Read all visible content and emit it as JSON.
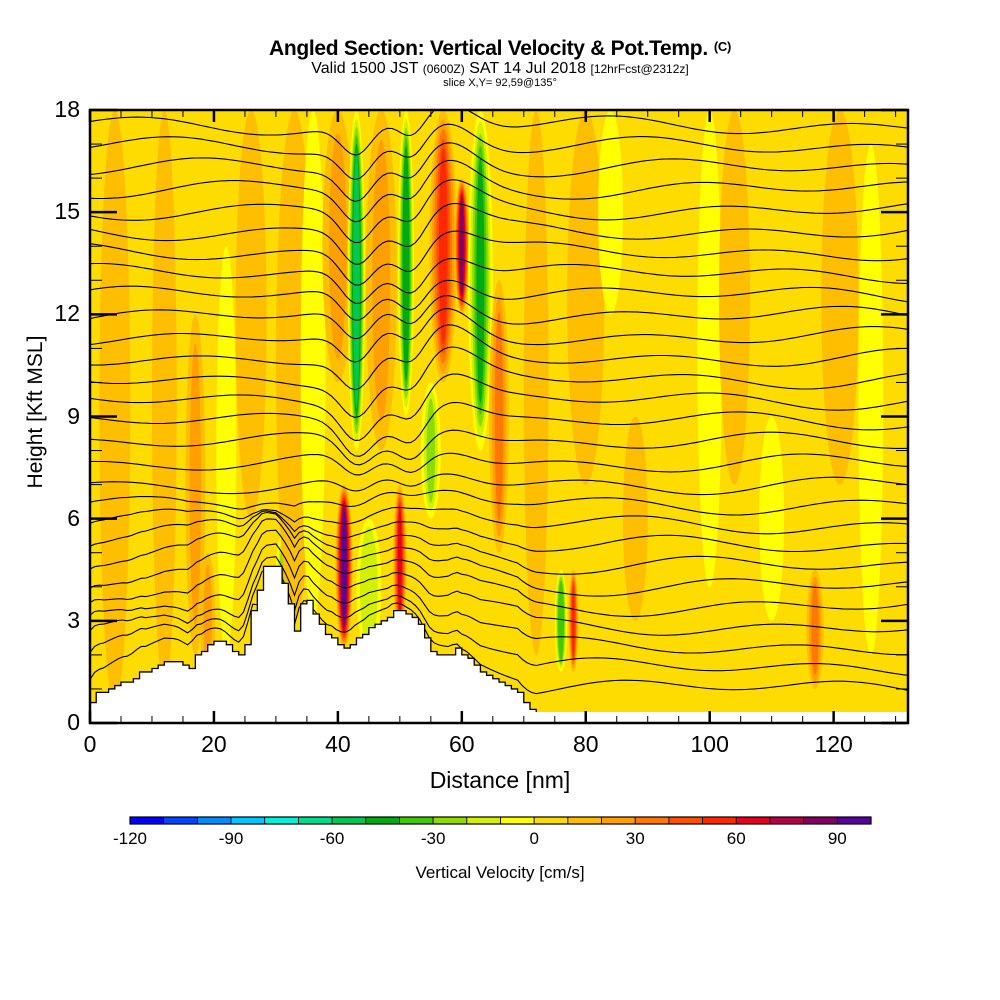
{
  "header": {
    "title": "Angled Section: Vertical Velocity & Pot.Temp.",
    "title_suffix": "(C)",
    "valid_prefix": "Valid 1500 JST",
    "valid_utc": "(0600Z)",
    "valid_date": "SAT 14 Jul 2018",
    "forecast": "[12hrFcst@2312z]",
    "slice": "slice X,Y= 92,59@135°"
  },
  "chart_data": {
    "type": "heatmap",
    "title": "Angled Section: Vertical Velocity & Pot.Temp. (C)",
    "xlabel": "Distance [nm]",
    "ylabel": "Height [Kft MSL]",
    "xlim": [
      0,
      132
    ],
    "ylim": [
      0,
      18
    ],
    "x_ticks": [
      "0",
      "20",
      "40",
      "60",
      "80",
      "100",
      "120"
    ],
    "x_tick_values": [
      0,
      20,
      40,
      60,
      80,
      100,
      120
    ],
    "y_ticks": [
      "0",
      "3",
      "6",
      "9",
      "12",
      "15",
      "18"
    ],
    "y_tick_values": [
      0,
      3,
      6,
      9,
      12,
      15,
      18
    ],
    "colorbar": {
      "label": "Vertical Velocity [cm/s]",
      "min": -120,
      "max": 100,
      "step": 10,
      "tick_labels": [
        "-120",
        "-90",
        "-60",
        "-30",
        "0",
        "30",
        "60",
        "90"
      ],
      "tick_values": [
        -120,
        -90,
        -60,
        -30,
        0,
        30,
        60,
        90
      ],
      "colors": [
        "#0000ff",
        "#0046ff",
        "#008cff",
        "#00c8ff",
        "#00f0dc",
        "#00dc8c",
        "#00c850",
        "#00aa14",
        "#46c800",
        "#8cdc00",
        "#d2f000",
        "#ffff00",
        "#ffdc00",
        "#ffbe00",
        "#ffa000",
        "#ff7800",
        "#ff5000",
        "#ff2800",
        "#e6001e",
        "#b40046",
        "#820064",
        "#5a0096"
      ]
    },
    "background_value": 5,
    "velocity_features": [
      {
        "x": 4,
        "z0": 0.5,
        "z1": 18,
        "w": 2.5,
        "v": 12
      },
      {
        "x": 12,
        "z0": 1,
        "z1": 18,
        "w": 2,
        "v": 14
      },
      {
        "x": 17,
        "z0": 2,
        "z1": 12,
        "w": 1.6,
        "v": 22
      },
      {
        "x": 19,
        "z0": 1,
        "z1": 5,
        "w": 1.2,
        "v": 28
      },
      {
        "x": 22,
        "z0": 2,
        "z1": 14,
        "w": 1.6,
        "v": -10
      },
      {
        "x": 26,
        "z0": 6,
        "z1": 18,
        "w": 2.5,
        "v": 14
      },
      {
        "x": 31,
        "z0": 2,
        "z1": 5.5,
        "w": 1.2,
        "v": -25
      },
      {
        "x": 33,
        "z0": 3,
        "z1": 18,
        "w": 3,
        "v": 12
      },
      {
        "x": 36,
        "z0": 3,
        "z1": 18,
        "w": 2,
        "v": -8
      },
      {
        "x": 40,
        "z0": 10,
        "z1": 18,
        "w": 2.5,
        "v": 22
      },
      {
        "x": 41,
        "z0": 2.2,
        "z1": 7,
        "w": 1.4,
        "v": 92
      },
      {
        "x": 43,
        "z0": 8,
        "z1": 18,
        "w": 1.4,
        "v": -60
      },
      {
        "x": 45,
        "z0": 2,
        "z1": 6,
        "w": 2,
        "v": -20
      },
      {
        "x": 47,
        "z0": 8,
        "z1": 18,
        "w": 2.5,
        "v": 25
      },
      {
        "x": 50,
        "z0": 2.5,
        "z1": 7,
        "w": 1.1,
        "v": 65
      },
      {
        "x": 51,
        "z0": 9,
        "z1": 18,
        "w": 1.3,
        "v": -50
      },
      {
        "x": 55,
        "z0": 6,
        "z1": 10,
        "w": 1.6,
        "v": -25
      },
      {
        "x": 57,
        "z0": 10,
        "z1": 18,
        "w": 2.2,
        "v": 55
      },
      {
        "x": 60,
        "z0": 12,
        "z1": 16,
        "w": 1.2,
        "v": 80
      },
      {
        "x": 63,
        "z0": 8,
        "z1": 18,
        "w": 2,
        "v": -45
      },
      {
        "x": 66,
        "z0": 5,
        "z1": 13,
        "w": 1.6,
        "v": 30
      },
      {
        "x": 72,
        "z0": 2,
        "z1": 18,
        "w": 2,
        "v": 15
      },
      {
        "x": 76,
        "z0": 1.5,
        "z1": 4.5,
        "w": 1,
        "v": -40
      },
      {
        "x": 78,
        "z0": 1.5,
        "z1": 4.5,
        "w": 0.8,
        "v": 50
      },
      {
        "x": 80,
        "z0": 7,
        "z1": 18,
        "w": 3,
        "v": 12
      },
      {
        "x": 84,
        "z0": 12,
        "z1": 18,
        "w": 2,
        "v": -8
      },
      {
        "x": 88,
        "z0": 3,
        "z1": 9,
        "w": 2,
        "v": 18
      },
      {
        "x": 100,
        "z0": 4,
        "z1": 18,
        "w": 2,
        "v": -8
      },
      {
        "x": 104,
        "z0": 7,
        "z1": 18,
        "w": 2.5,
        "v": 12
      },
      {
        "x": 110,
        "z0": 3,
        "z1": 9,
        "w": 2,
        "v": -8
      },
      {
        "x": 117,
        "z0": 1,
        "z1": 4.5,
        "w": 1.4,
        "v": 35
      },
      {
        "x": 121,
        "z0": 7,
        "z1": 18,
        "w": 3,
        "v": 14
      },
      {
        "x": 126,
        "z0": 2,
        "z1": 17,
        "w": 2,
        "v": -10
      }
    ],
    "terrain": {
      "x": [
        0,
        1,
        2,
        3,
        4,
        5,
        6,
        7,
        8,
        9,
        10,
        11,
        12,
        13,
        14,
        15,
        16,
        17,
        18,
        19,
        20,
        21,
        22,
        23,
        24,
        25,
        26,
        27,
        28,
        29,
        30,
        31,
        32,
        33,
        34,
        35,
        36,
        37,
        38,
        39,
        40,
        41,
        42,
        43,
        44,
        45,
        46,
        47,
        48,
        49,
        50,
        51,
        52,
        53,
        54,
        55,
        56,
        57,
        58,
        59,
        60,
        61,
        62,
        63,
        64,
        65,
        66,
        67,
        68,
        69,
        70,
        71,
        72,
        73,
        74,
        75
      ],
      "z": [
        0.6,
        0.9,
        0.9,
        1.0,
        1.1,
        1.2,
        1.2,
        1.3,
        1.5,
        1.5,
        1.6,
        1.7,
        1.8,
        1.8,
        1.8,
        1.7,
        1.6,
        2.0,
        2.1,
        2.3,
        2.4,
        2.4,
        2.3,
        2.1,
        2.0,
        2.3,
        3.3,
        3.9,
        4.6,
        4.6,
        4.6,
        4.1,
        3.5,
        2.7,
        3.5,
        3.6,
        3.2,
        2.9,
        2.6,
        2.5,
        2.3,
        2.2,
        2.3,
        2.5,
        2.6,
        2.8,
        2.9,
        3.0,
        3.1,
        3.3,
        3.3,
        3.2,
        3.1,
        2.9,
        2.5,
        2.1,
        2.0,
        2.0,
        2.0,
        2.2,
        2.0,
        1.9,
        1.7,
        1.5,
        1.4,
        1.3,
        1.2,
        1.1,
        1.0,
        0.9,
        0.6,
        0.4,
        0.3,
        0.3,
        0.3,
        0.3
      ]
    },
    "isentropes": {
      "levels_count": 28,
      "base_height_kft": 0.8,
      "spacing_kft": 0.62,
      "label_boxes_note": "labels present but illegible"
    }
  }
}
